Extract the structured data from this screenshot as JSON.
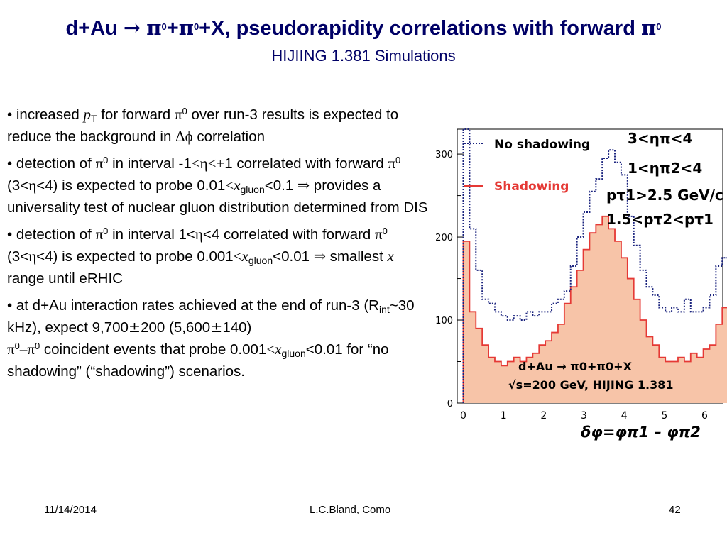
{
  "slide": {
    "title": {
      "a": "d+Au ",
      "arrow": "→",
      "b": " ",
      "pi": "π",
      "zero": "0",
      "plus": "+",
      "c": "+X, pseudorapidity correlations with forward "
    },
    "subtitle": "HIJIING 1.381 Simulations",
    "bullets": {
      "b1": {
        "a": "• increased ",
        "p": "p",
        "T": "T",
        "b": " for forward ",
        "pi": "π",
        "zero": "0",
        "c": " over run-3 results is expected to reduce the background in ",
        "dphi": "Δϕ",
        "d": " correlation"
      },
      "b2": {
        "a": "• detection of ",
        "pi": "π",
        "zero": "0",
        "b": " in interval -1",
        "lt": "<",
        "eta": "η",
        "ltplus": "<+",
        "c": "1 correlated with forward ",
        "d": " (3<",
        "e": "<4) is expected to probe 0.01",
        "x": "x",
        "gluon": "gluon",
        "f": "<0.1 ",
        "implies": "⇒",
        "g": " provides a universality test of nuclear gluon distribution determined from DIS"
      },
      "b3": {
        "a": "• detection of ",
        "pi": "π",
        "zero": "0",
        "b": " in interval 1<",
        "eta": "η",
        "c": "<4 correlated with forward ",
        "d": " (3<",
        "e": "<4) is expected to probe 0.001",
        "lt": "<",
        "x": "x",
        "gluon": "gluon",
        "f": "<0.01 ",
        "implies": "⇒",
        "g": " smallest ",
        "h": " range until eRHIC"
      },
      "b4": {
        "a": "• at d+Au interaction rates achieved at the end of run-3 (R",
        "int": "int",
        "b": "~30 kHz), expect 9,700",
        "pm": "±",
        "c": "200 (5,600",
        "d": "140)",
        "pi": "π",
        "zero": "0",
        "dash": "–",
        "e": " coincident events that probe 0.001",
        "lt": "<",
        "x": "x",
        "gluon": "gluon",
        "f": "<0.01 for “no shadowing” (“shadowing”) scenarios."
      }
    },
    "footer": {
      "date": "11/14/2014",
      "author": "L.C.Bland, Como",
      "page": "42"
    }
  },
  "chart_data": {
    "type": "line",
    "xlim": [
      -0.15,
      6.45
    ],
    "ylim": [
      0,
      330
    ],
    "xticks": [
      "0",
      "1",
      "2",
      "3",
      "4",
      "5",
      "6"
    ],
    "yticks": [
      "0",
      "100",
      "200",
      "300"
    ],
    "xlabel": "δφ=φπ1 – φπ2",
    "x_start": 0,
    "bin_width": 0.157,
    "series": [
      {
        "name": "No shadowing",
        "style": "dotted",
        "color": "#1a237e",
        "values": [
          370,
          210,
          160,
          125,
          120,
          110,
          105,
          100,
          105,
          100,
          110,
          105,
          110,
          110,
          120,
          125,
          135,
          165,
          200,
          230,
          255,
          270,
          295,
          305,
          290,
          275,
          225,
          190,
          160,
          140,
          130,
          115,
          110,
          115,
          110,
          125,
          110,
          110,
          115,
          130,
          165,
          175
        ]
      },
      {
        "name": "Shadowing",
        "style": "solid",
        "color": "#e53935",
        "fill": "#f7c4a8",
        "values": [
          195,
          110,
          90,
          70,
          55,
          50,
          45,
          50,
          55,
          50,
          55,
          60,
          70,
          75,
          85,
          95,
          120,
          140,
          160,
          185,
          205,
          215,
          225,
          210,
          195,
          175,
          150,
          125,
          100,
          80,
          70,
          55,
          50,
          50,
          55,
          50,
          60,
          55,
          65,
          70,
          95,
          115
        ]
      }
    ],
    "annotations": {
      "eta1": "3<ηπ<4",
      "eta2": "1<ηπ2<4",
      "pt1": "pτ1>2.5 GeV/c",
      "pt2": "1.5<pτ2<pτ1",
      "reaction": "d+Au → π0+π0+X",
      "energy": "√s=200 GeV, HIJING 1.381"
    },
    "legend_position": "top-left"
  }
}
